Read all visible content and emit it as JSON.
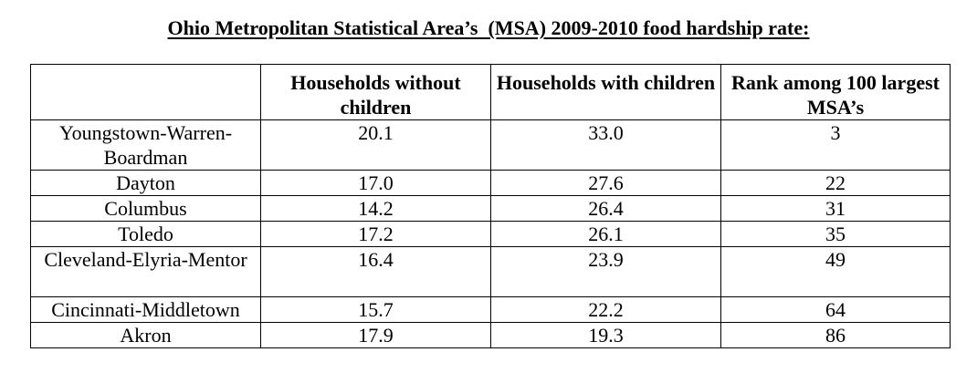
{
  "title": "Ohio Metropolitan Statistical Area’s  (MSA) 2009-2010 food hardship rate:",
  "table": {
    "headers": [
      "",
      "Households without children",
      "Households with children",
      "Rank among 100 largest MSA’s"
    ],
    "rows": [
      {
        "msa": "Youngstown-Warren-Boardman",
        "without": "20.1",
        "with": "33.0",
        "rank": "3"
      },
      {
        "msa": "Dayton",
        "without": "17.0",
        "with": "27.6",
        "rank": "22"
      },
      {
        "msa": "Columbus",
        "without": "14.2",
        "with": "26.4",
        "rank": "31"
      },
      {
        "msa": "Toledo",
        "without": "17.2",
        "with": "26.1",
        "rank": "35"
      },
      {
        "msa": "Cleveland-Elyria-Mentor",
        "without": "16.4",
        "with": "23.9",
        "rank": "49"
      },
      {
        "msa": "Cincinnati-Middletown",
        "without": "15.7",
        "with": "22.2",
        "rank": "64"
      },
      {
        "msa": "Akron",
        "without": "17.9",
        "with": "19.3",
        "rank": "86"
      }
    ]
  }
}
